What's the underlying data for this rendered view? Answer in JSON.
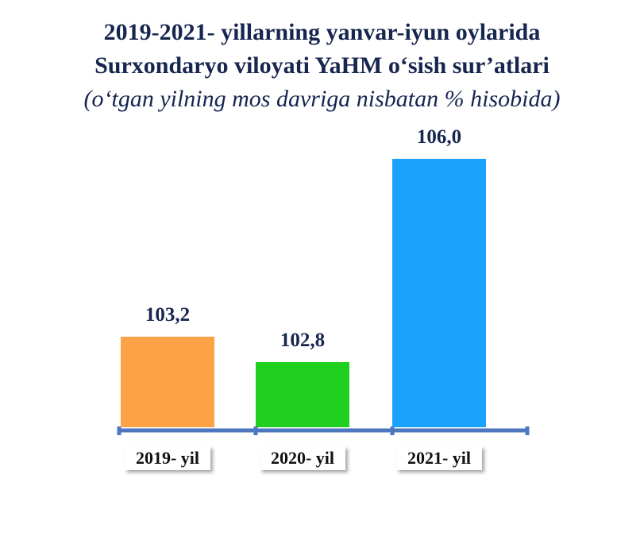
{
  "chart_data": {
    "type": "bar",
    "title_lines": [
      "2019-2021- yillarning yanvar-iyun oylarida",
      "Surxondaryo viloyati YaHM o‘sish sur’atlari"
    ],
    "subtitle": "(o‘tgan yilning mos davriga nisbatan % hisobida)",
    "categories": [
      "2019- yil",
      "2020- yil",
      "2021- yil"
    ],
    "values": [
      103.2,
      102.8,
      106.0
    ],
    "value_labels": [
      "103,2",
      "102,8",
      "106,0"
    ],
    "colors": [
      "#fba346",
      "#1fd01f",
      "#1aa2fc"
    ],
    "axis_color": "#4d78c0",
    "grid": false
  }
}
